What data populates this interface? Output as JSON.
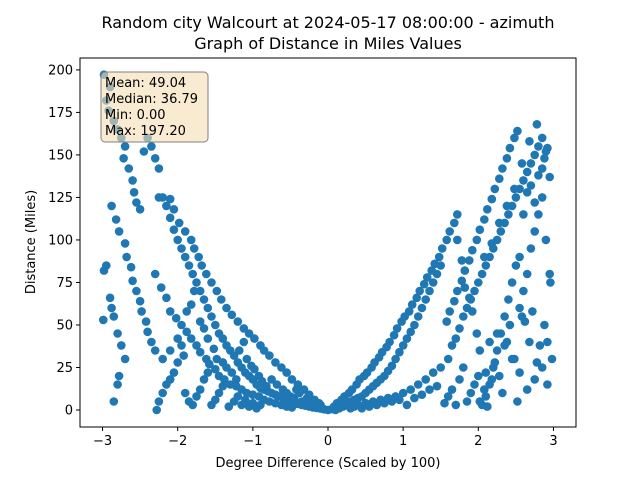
{
  "chart_data": {
    "type": "scatter",
    "title_line1": "Random city Walcourt at 2024-05-17 08:00:00  - azimuth",
    "title_line2": "Graph of Distance in Miles Values",
    "xlabel": "Degree Difference (Scaled by 100)",
    "ylabel": "Distance (Miles)",
    "xlim": [
      -3.3,
      3.3
    ],
    "ylim": [
      -10,
      207
    ],
    "xticks": [
      -3,
      -2,
      -1,
      0,
      1,
      2,
      3
    ],
    "yticks": [
      0,
      25,
      50,
      75,
      100,
      125,
      150,
      175,
      200
    ],
    "grid": false,
    "marker_color": "#1f77b4",
    "stats": {
      "mean": "Mean: 49.04",
      "median": "Median: 36.79",
      "min": "Min: 0.00",
      "max": "Max: 197.20"
    },
    "stats_box_color": "#f5deb3",
    "points": [
      [
        -2.98,
        197.2
      ],
      [
        -2.9,
        190
      ],
      [
        -2.95,
        182
      ],
      [
        -2.92,
        176
      ],
      [
        -2.85,
        170
      ],
      [
        -2.8,
        165
      ],
      [
        -2.75,
        160
      ],
      [
        -2.7,
        155
      ],
      [
        -2.72,
        148
      ],
      [
        -2.65,
        142
      ],
      [
        -2.6,
        135
      ],
      [
        -2.58,
        128
      ],
      [
        -2.55,
        122
      ],
      [
        -2.5,
        118
      ],
      [
        -2.45,
        152
      ],
      [
        -2.4,
        160
      ],
      [
        -2.35,
        155
      ],
      [
        -2.3,
        148
      ],
      [
        -2.25,
        142
      ],
      [
        -2.88,
        120
      ],
      [
        -2.82,
        112
      ],
      [
        -2.78,
        105
      ],
      [
        -2.7,
        98
      ],
      [
        -2.68,
        90
      ],
      [
        -2.62,
        84
      ],
      [
        -2.6,
        76
      ],
      [
        -2.55,
        70
      ],
      [
        -2.5,
        64
      ],
      [
        -2.48,
        58
      ],
      [
        -2.42,
        52
      ],
      [
        -2.4,
        46
      ],
      [
        -2.35,
        40
      ],
      [
        -2.3,
        35
      ],
      [
        -2.98,
        82
      ],
      [
        -2.95,
        85
      ],
      [
        -2.9,
        66
      ],
      [
        -2.88,
        60
      ],
      [
        -2.85,
        55
      ],
      [
        -2.99,
        53
      ],
      [
        -2.8,
        45
      ],
      [
        -2.75,
        38
      ],
      [
        -2.7,
        30
      ],
      [
        -2.78,
        20
      ],
      [
        -2.8,
        15
      ],
      [
        -2.85,
        5
      ],
      [
        -2.2,
        125
      ],
      [
        -2.15,
        120
      ],
      [
        -2.1,
        113
      ],
      [
        -2.05,
        106
      ],
      [
        -2.0,
        100
      ],
      [
        -1.95,
        95
      ],
      [
        -1.9,
        90
      ],
      [
        -1.85,
        85
      ],
      [
        -1.8,
        80
      ],
      [
        -1.75,
        75
      ],
      [
        -1.7,
        70
      ],
      [
        -1.65,
        65
      ],
      [
        -1.6,
        60
      ],
      [
        -1.55,
        55
      ],
      [
        -1.5,
        50
      ],
      [
        -1.45,
        45
      ],
      [
        -1.4,
        42
      ],
      [
        -1.35,
        38
      ],
      [
        -1.3,
        35
      ],
      [
        -1.25,
        32
      ],
      [
        -1.2,
        28
      ],
      [
        -1.15,
        25
      ],
      [
        -1.1,
        22
      ],
      [
        -1.05,
        20
      ],
      [
        -1.0,
        18
      ],
      [
        -0.95,
        15
      ],
      [
        -0.9,
        13
      ],
      [
        -0.85,
        12
      ],
      [
        -0.8,
        11
      ],
      [
        -0.75,
        10
      ],
      [
        -0.7,
        9
      ],
      [
        -0.65,
        8
      ],
      [
        -0.6,
        7
      ],
      [
        -0.55,
        6
      ],
      [
        -0.5,
        5
      ],
      [
        -0.45,
        4
      ],
      [
        -0.4,
        3.5
      ],
      [
        -0.35,
        3
      ],
      [
        -0.3,
        2.5
      ],
      [
        -0.25,
        2
      ],
      [
        -0.2,
        1.5
      ],
      [
        -0.15,
        1.2
      ],
      [
        -0.1,
        0.8
      ],
      [
        -0.05,
        0.4
      ],
      [
        0.0,
        0.0
      ],
      [
        -2.25,
        125
      ],
      [
        -2.1,
        124
      ],
      [
        -2.05,
        118
      ],
      [
        -1.98,
        110
      ],
      [
        -1.9,
        105
      ],
      [
        -1.82,
        100
      ],
      [
        -1.78,
        95
      ],
      [
        -1.72,
        90
      ],
      [
        -1.68,
        85
      ],
      [
        -1.62,
        80
      ],
      [
        -1.55,
        75
      ],
      [
        -1.48,
        70
      ],
      [
        -1.42,
        65
      ],
      [
        -1.35,
        60
      ],
      [
        -1.28,
        56
      ],
      [
        -1.2,
        52
      ],
      [
        -1.12,
        48
      ],
      [
        -1.05,
        45
      ],
      [
        -0.98,
        42
      ],
      [
        -0.9,
        38
      ],
      [
        -0.85,
        35
      ],
      [
        -0.78,
        32
      ],
      [
        -0.7,
        28
      ],
      [
        -0.62,
        25
      ],
      [
        -0.55,
        22
      ],
      [
        -0.48,
        18
      ],
      [
        -0.4,
        15
      ],
      [
        -0.32,
        12
      ],
      [
        -0.25,
        9
      ],
      [
        -0.18,
        6
      ],
      [
        -0.1,
        3
      ],
      [
        -2.3,
        80
      ],
      [
        -2.22,
        72
      ],
      [
        -2.15,
        66
      ],
      [
        -2.1,
        58
      ],
      [
        -2.02,
        54
      ],
      [
        -1.95,
        50
      ],
      [
        -1.88,
        46
      ],
      [
        -1.82,
        42
      ],
      [
        -1.75,
        38
      ],
      [
        -1.7,
        34
      ],
      [
        -1.62,
        30
      ],
      [
        -1.58,
        27
      ],
      [
        -1.5,
        24
      ],
      [
        -1.45,
        20
      ],
      [
        -1.38,
        18
      ],
      [
        -1.3,
        15
      ],
      [
        -1.22,
        14
      ],
      [
        -1.15,
        12
      ],
      [
        -1.08,
        10
      ],
      [
        -1.0,
        9
      ],
      [
        -0.92,
        8
      ],
      [
        -0.85,
        6
      ],
      [
        -0.78,
        5
      ],
      [
        -0.7,
        4
      ],
      [
        -0.62,
        3
      ],
      [
        -0.55,
        2
      ],
      [
        -0.48,
        1.5
      ],
      [
        -2.28,
        0
      ],
      [
        -2.25,
        5
      ],
      [
        -2.2,
        10
      ],
      [
        -2.15,
        15
      ],
      [
        -2.1,
        18
      ],
      [
        -2.05,
        22
      ],
      [
        -2.0,
        28
      ],
      [
        -1.92,
        32
      ],
      [
        -1.9,
        10
      ],
      [
        -1.85,
        5
      ],
      [
        -1.8,
        3
      ],
      [
        -1.75,
        8
      ],
      [
        -1.7,
        12
      ],
      [
        -1.65,
        18
      ],
      [
        -1.6,
        22
      ],
      [
        -1.55,
        3
      ],
      [
        -1.5,
        6
      ],
      [
        -1.45,
        10
      ],
      [
        -1.4,
        14
      ],
      [
        -1.32,
        2
      ],
      [
        -1.25,
        5
      ],
      [
        -1.2,
        8
      ],
      [
        -1.15,
        3
      ],
      [
        -1.1,
        6
      ],
      [
        -1.05,
        2
      ],
      [
        -1.0,
        4
      ],
      [
        -0.95,
        1
      ],
      [
        -0.9,
        3
      ],
      [
        -2.2,
        30
      ],
      [
        -2.1,
        35
      ],
      [
        -2.0,
        42
      ],
      [
        -1.95,
        38
      ],
      [
        -1.88,
        58
      ],
      [
        -1.82,
        62
      ],
      [
        -1.78,
        70
      ],
      [
        -1.7,
        52
      ],
      [
        -1.65,
        48
      ],
      [
        -1.6,
        42
      ],
      [
        -1.52,
        36
      ],
      [
        -1.48,
        30
      ],
      [
        -1.4,
        28
      ],
      [
        -1.35,
        25
      ],
      [
        -1.28,
        22
      ],
      [
        -1.22,
        18
      ],
      [
        -1.18,
        35
      ],
      [
        -1.12,
        40
      ],
      [
        -1.08,
        30
      ],
      [
        -1.02,
        26
      ],
      [
        -0.98,
        24
      ],
      [
        -0.92,
        20
      ],
      [
        -0.88,
        17
      ],
      [
        -0.82,
        14
      ],
      [
        -0.75,
        18
      ],
      [
        -0.68,
        15
      ],
      [
        -0.6,
        12
      ],
      [
        -0.55,
        10
      ],
      [
        -0.5,
        8
      ],
      [
        -0.45,
        7
      ],
      [
        -0.42,
        12
      ],
      [
        -0.38,
        10
      ],
      [
        -0.35,
        5
      ],
      [
        -0.3,
        4
      ],
      [
        -0.28,
        7
      ],
      [
        -0.22,
        3
      ],
      [
        -0.2,
        5
      ],
      [
        -0.15,
        2
      ],
      [
        -0.12,
        4
      ],
      [
        -0.08,
        1
      ],
      [
        0.05,
        0.5
      ],
      [
        0.1,
        1.2
      ],
      [
        0.15,
        2
      ],
      [
        0.2,
        3
      ],
      [
        0.25,
        4
      ],
      [
        0.3,
        5
      ],
      [
        0.35,
        6
      ],
      [
        0.4,
        7
      ],
      [
        0.45,
        8
      ],
      [
        0.5,
        10
      ],
      [
        0.55,
        12
      ],
      [
        0.6,
        14
      ],
      [
        0.65,
        16
      ],
      [
        0.7,
        18
      ],
      [
        0.75,
        20
      ],
      [
        0.8,
        23
      ],
      [
        0.85,
        26
      ],
      [
        0.9,
        30
      ],
      [
        0.95,
        34
      ],
      [
        1.0,
        38
      ],
      [
        1.05,
        42
      ],
      [
        1.1,
        46
      ],
      [
        1.15,
        50
      ],
      [
        1.2,
        55
      ],
      [
        1.25,
        60
      ],
      [
        1.3,
        65
      ],
      [
        1.35,
        70
      ],
      [
        1.4,
        75
      ],
      [
        1.45,
        80
      ],
      [
        1.5,
        85
      ],
      [
        0.08,
        2
      ],
      [
        0.12,
        4
      ],
      [
        0.18,
        6
      ],
      [
        0.22,
        8
      ],
      [
        0.28,
        10
      ],
      [
        0.32,
        12
      ],
      [
        0.38,
        15
      ],
      [
        0.42,
        18
      ],
      [
        0.48,
        20
      ],
      [
        0.52,
        22
      ],
      [
        0.58,
        25
      ],
      [
        0.62,
        28
      ],
      [
        0.68,
        31
      ],
      [
        0.72,
        34
      ],
      [
        0.78,
        37
      ],
      [
        0.82,
        40
      ],
      [
        0.88,
        44
      ],
      [
        0.92,
        48
      ],
      [
        0.98,
        52
      ],
      [
        1.02,
        55
      ],
      [
        1.08,
        58
      ],
      [
        1.12,
        62
      ],
      [
        1.18,
        66
      ],
      [
        1.22,
        70
      ],
      [
        1.28,
        74
      ],
      [
        1.32,
        78
      ],
      [
        1.38,
        82
      ],
      [
        1.42,
        86
      ],
      [
        1.48,
        90
      ],
      [
        1.52,
        95
      ],
      [
        1.58,
        100
      ],
      [
        1.62,
        105
      ],
      [
        1.68,
        110
      ],
      [
        1.72,
        115
      ],
      [
        0.1,
        0
      ],
      [
        0.15,
        1
      ],
      [
        0.2,
        2
      ],
      [
        0.25,
        3
      ],
      [
        0.3,
        1
      ],
      [
        0.35,
        2
      ],
      [
        0.4,
        3
      ],
      [
        0.45,
        1
      ],
      [
        0.5,
        4
      ],
      [
        0.55,
        2
      ],
      [
        0.6,
        5
      ],
      [
        0.65,
        3
      ],
      [
        0.7,
        6
      ],
      [
        0.75,
        4
      ],
      [
        0.8,
        7
      ],
      [
        0.85,
        5
      ],
      [
        0.9,
        8
      ],
      [
        0.95,
        6
      ],
      [
        1.0,
        10
      ],
      [
        1.05,
        3
      ],
      [
        1.1,
        12
      ],
      [
        1.15,
        7
      ],
      [
        1.2,
        15
      ],
      [
        1.25,
        9
      ],
      [
        1.3,
        18
      ],
      [
        1.35,
        12
      ],
      [
        1.4,
        22
      ],
      [
        1.45,
        14
      ],
      [
        1.5,
        25
      ],
      [
        1.55,
        4
      ],
      [
        1.6,
        8
      ],
      [
        1.65,
        12
      ],
      [
        1.7,
        3
      ],
      [
        1.75,
        18
      ],
      [
        1.8,
        25
      ],
      [
        1.85,
        5
      ],
      [
        1.9,
        10
      ],
      [
        1.95,
        15
      ],
      [
        1.58,
        52
      ],
      [
        1.62,
        58
      ],
      [
        1.68,
        64
      ],
      [
        1.72,
        70
      ],
      [
        1.78,
        76
      ],
      [
        1.82,
        82
      ],
      [
        1.88,
        88
      ],
      [
        1.92,
        94
      ],
      [
        1.98,
        100
      ],
      [
        2.02,
        106
      ],
      [
        2.08,
        112
      ],
      [
        2.12,
        118
      ],
      [
        2.18,
        124
      ],
      [
        2.22,
        130
      ],
      [
        2.28,
        136
      ],
      [
        2.32,
        142
      ],
      [
        2.38,
        148
      ],
      [
        2.42,
        154
      ],
      [
        2.48,
        160
      ],
      [
        2.52,
        164
      ],
      [
        1.6,
        30
      ],
      [
        1.65,
        38
      ],
      [
        1.7,
        42
      ],
      [
        1.75,
        48
      ],
      [
        1.8,
        55
      ],
      [
        1.85,
        60
      ],
      [
        1.9,
        65
      ],
      [
        1.95,
        70
      ],
      [
        2.0,
        75
      ],
      [
        2.05,
        80
      ],
      [
        2.1,
        85
      ],
      [
        2.15,
        90
      ],
      [
        2.2,
        95
      ],
      [
        2.25,
        100
      ],
      [
        2.3,
        105
      ],
      [
        2.35,
        110
      ],
      [
        2.4,
        115
      ],
      [
        2.45,
        120
      ],
      [
        2.5,
        125
      ],
      [
        2.55,
        130
      ],
      [
        2.6,
        135
      ],
      [
        2.65,
        140
      ],
      [
        2.7,
        145
      ],
      [
        2.75,
        150
      ],
      [
        2.8,
        155
      ],
      [
        2.85,
        160
      ],
      [
        2.88,
        148
      ],
      [
        2.92,
        154
      ],
      [
        2.95,
        137
      ],
      [
        2.0,
        20
      ],
      [
        2.05,
        3
      ],
      [
        2.1,
        8
      ],
      [
        2.15,
        15
      ],
      [
        2.2,
        25
      ],
      [
        2.25,
        35
      ],
      [
        2.3,
        45
      ],
      [
        2.35,
        55
      ],
      [
        2.4,
        65
      ],
      [
        2.45,
        75
      ],
      [
        2.5,
        85
      ],
      [
        2.55,
        60
      ],
      [
        2.6,
        70
      ],
      [
        2.65,
        80
      ],
      [
        2.7,
        95
      ],
      [
        2.75,
        105
      ],
      [
        2.8,
        115
      ],
      [
        2.85,
        125
      ],
      [
        2.9,
        100
      ],
      [
        2.95,
        80
      ],
      [
        2.98,
        30
      ],
      [
        2.02,
        5
      ],
      [
        2.08,
        12
      ],
      [
        2.12,
        2
      ],
      [
        2.18,
        18
      ],
      [
        2.22,
        28
      ],
      [
        2.28,
        20
      ],
      [
        2.32,
        10
      ],
      [
        2.38,
        40
      ],
      [
        2.42,
        50
      ],
      [
        2.48,
        30
      ],
      [
        2.52,
        5
      ],
      [
        2.58,
        55
      ],
      [
        2.62,
        52
      ],
      [
        2.68,
        40
      ],
      [
        2.72,
        58
      ],
      [
        2.78,
        28
      ],
      [
        2.82,
        38
      ],
      [
        2.88,
        50
      ],
      [
        2.92,
        15
      ],
      [
        2.96,
        75
      ],
      [
        2.55,
        90
      ],
      [
        2.6,
        115
      ],
      [
        2.65,
        128
      ],
      [
        2.7,
        132
      ],
      [
        2.75,
        122
      ],
      [
        2.8,
        138
      ],
      [
        2.85,
        142
      ],
      [
        2.9,
        152
      ],
      [
        2.78,
        168
      ],
      [
        2.68,
        158
      ],
      [
        2.58,
        145
      ],
      [
        2.48,
        130
      ],
      [
        2.38,
        120
      ],
      [
        2.28,
        110
      ],
      [
        2.18,
        98
      ],
      [
        2.08,
        90
      ],
      [
        1.72,
        100
      ],
      [
        1.78,
        88
      ],
      [
        1.82,
        72
      ],
      [
        1.88,
        66
      ],
      [
        1.92,
        58
      ],
      [
        1.98,
        45
      ],
      [
        2.02,
        35
      ],
      [
        2.1,
        22
      ],
      [
        2.15,
        40
      ],
      [
        2.25,
        45
      ],
      [
        2.35,
        38
      ],
      [
        2.45,
        30
      ],
      [
        2.55,
        22
      ],
      [
        2.65,
        12
      ],
      [
        2.75,
        18
      ],
      [
        2.85,
        25
      ],
      [
        2.92,
        40
      ]
    ]
  }
}
